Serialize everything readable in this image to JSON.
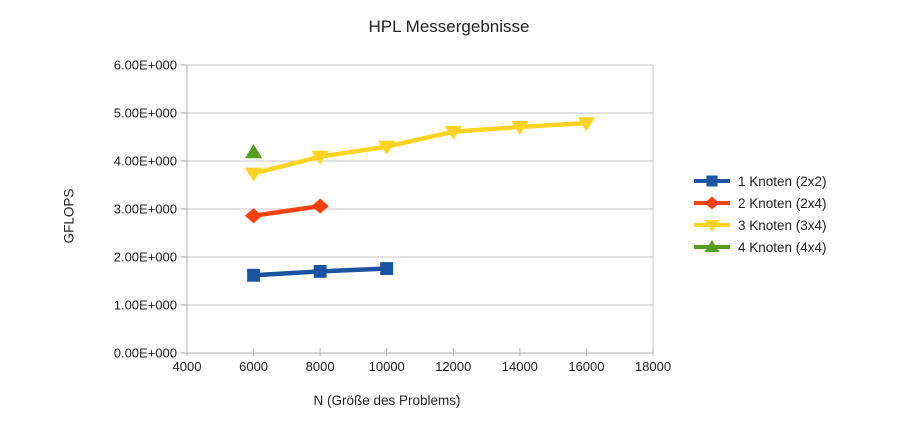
{
  "chart_data": {
    "type": "line",
    "title": "HPL Messergebnisse",
    "xlabel": "N (Größe des Problems)",
    "ylabel": "GFLOPS",
    "xlim": [
      4000,
      18000
    ],
    "ylim": [
      0,
      6
    ],
    "grid": "horizontal",
    "legend_position": "right",
    "x_ticks": [
      {
        "value": 4000,
        "label": "4000"
      },
      {
        "value": 6000,
        "label": "6000"
      },
      {
        "value": 8000,
        "label": "8000"
      },
      {
        "value": 10000,
        "label": "10000"
      },
      {
        "value": 12000,
        "label": "12000"
      },
      {
        "value": 14000,
        "label": "14000"
      },
      {
        "value": 16000,
        "label": "16000"
      },
      {
        "value": 18000,
        "label": "18000"
      }
    ],
    "y_ticks": [
      {
        "value": 0,
        "label": "0.00E+000"
      },
      {
        "value": 1,
        "label": "1.00E+000"
      },
      {
        "value": 2,
        "label": "2.00E+000"
      },
      {
        "value": 3,
        "label": "3.00E+000"
      },
      {
        "value": 4,
        "label": "4.00E+000"
      },
      {
        "value": 5,
        "label": "5.00E+000"
      },
      {
        "value": 6,
        "label": "6.00E+000"
      }
    ],
    "series": [
      {
        "name": "1 Knoten (2x2)",
        "color": "#1a54a0",
        "marker": "square",
        "x": [
          6000,
          8000,
          10000
        ],
        "y": [
          1.62,
          1.7,
          1.76
        ]
      },
      {
        "name": "2 Knoten (2x4)",
        "color": "#fb420e",
        "marker": "diamond",
        "x": [
          6000,
          8000
        ],
        "y": [
          2.86,
          3.06
        ]
      },
      {
        "name": "3 Knoten (3x4)",
        "color": "#ffd320",
        "marker": "triangle-down",
        "x": [
          6000,
          8000,
          10000,
          12000,
          14000,
          16000
        ],
        "y": [
          3.74,
          4.09,
          4.3,
          4.61,
          4.71,
          4.79
        ]
      },
      {
        "name": "4 Knoten (4x4)",
        "color": "#579d1c",
        "marker": "triangle-up",
        "x": [
          6000
        ],
        "y": [
          4.18
        ]
      }
    ],
    "colors": {
      "gridline": "#c8c8c8",
      "axis": "#b2b2b2",
      "text": "#1f1f1f"
    }
  }
}
